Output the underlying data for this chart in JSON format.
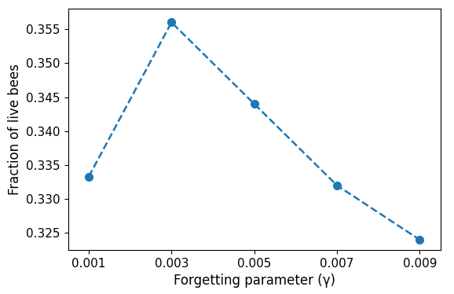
{
  "x": [
    0.001,
    0.003,
    0.005,
    0.007,
    0.009
  ],
  "y": [
    0.3333,
    0.356,
    0.344,
    0.332,
    0.324
  ],
  "line_color": "#1f77b4",
  "marker": "o",
  "marker_size": 7,
  "line_style": "--",
  "line_width": 1.8,
  "xlabel": "Forgetting parameter (γ)",
  "ylabel": "Fraction of live bees",
  "xlim": [
    0.0005,
    0.0095
  ],
  "ylim": [
    0.3225,
    0.358
  ],
  "xlabel_fontsize": 12,
  "ylabel_fontsize": 12,
  "tick_fontsize": 11,
  "xticks": [
    0.001,
    0.003,
    0.005,
    0.007,
    0.009
  ],
  "yticks": [
    0.325,
    0.33,
    0.335,
    0.34,
    0.345,
    0.35,
    0.355
  ]
}
